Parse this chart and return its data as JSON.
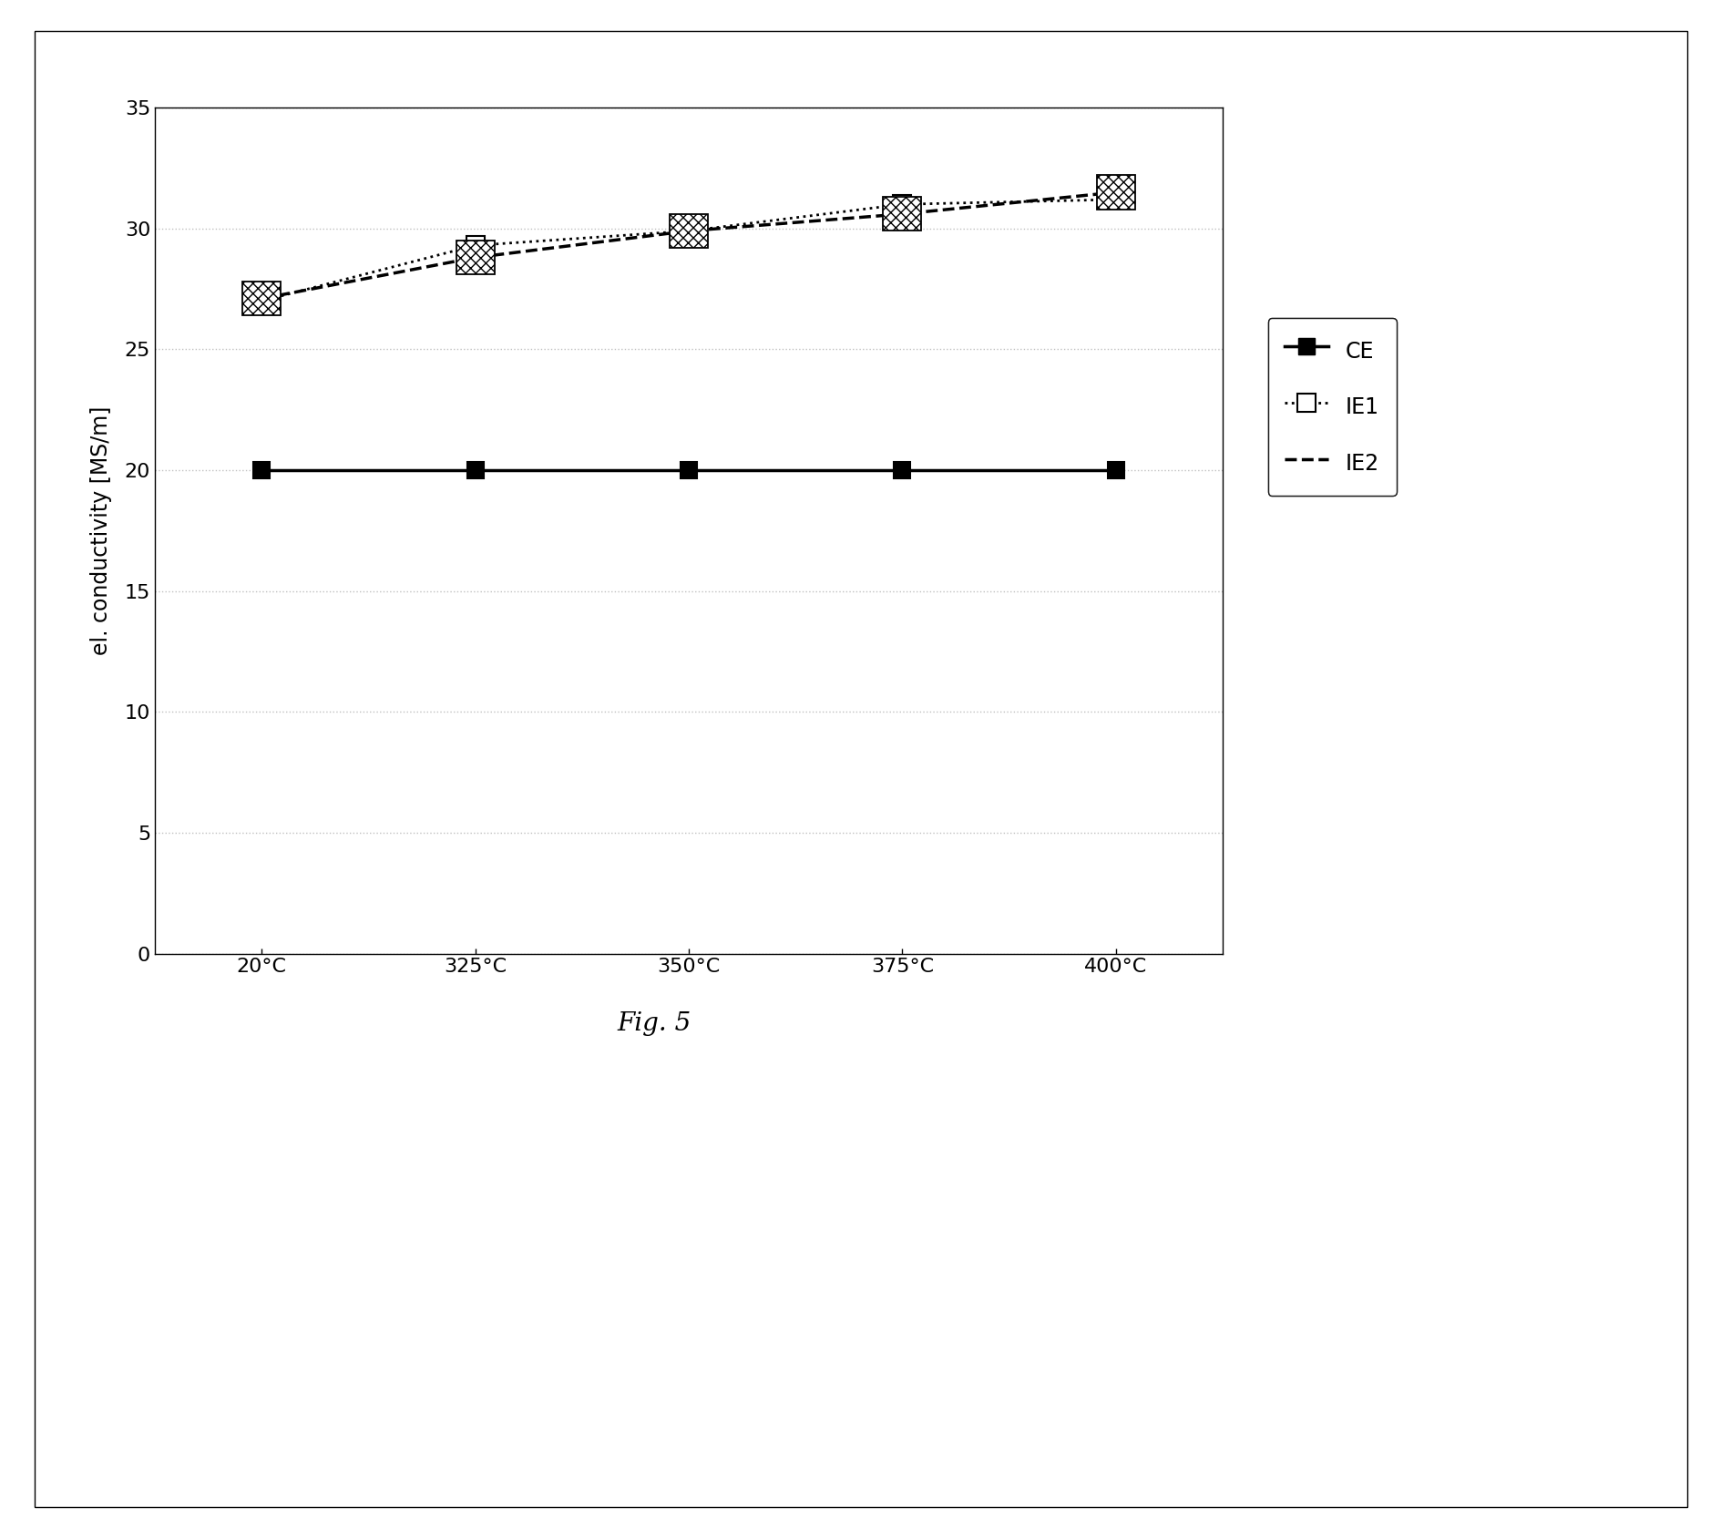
{
  "x_labels": [
    "20°C",
    "325°C",
    "350°C",
    "375°C",
    "400°C"
  ],
  "x_values": [
    0,
    1,
    2,
    3,
    4
  ],
  "CE_values": [
    20,
    20,
    20,
    20,
    20
  ],
  "IE1_values": [
    27.0,
    29.3,
    29.9,
    31.0,
    31.2
  ],
  "IE2_values": [
    27.1,
    28.8,
    29.9,
    30.6,
    31.5
  ],
  "ylabel": "el. conductivity [MS/m]",
  "ylim": [
    0,
    35
  ],
  "yticks": [
    0,
    5,
    10,
    15,
    20,
    25,
    30,
    35
  ],
  "title": "Fig. 5",
  "background_color": "#ffffff",
  "line_color": "#000000",
  "grid_color": "#c0c0c0"
}
